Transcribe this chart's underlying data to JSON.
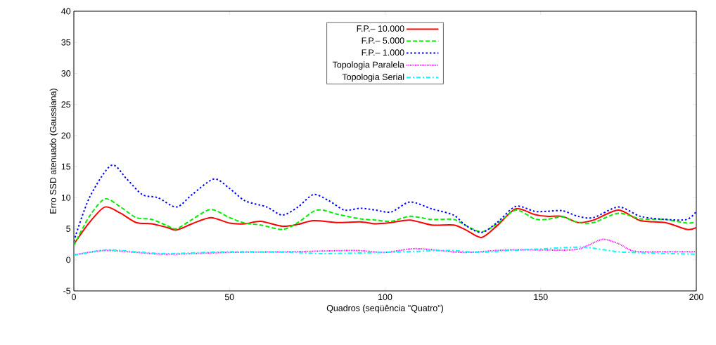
{
  "chart_data": {
    "type": "line",
    "xlabel": "Quadros (seqüência \"Quatro\")",
    "ylabel": "Erro SSD atenuado (Gaussiana)",
    "xlim": [
      0,
      200
    ],
    "xticks": [
      0,
      50,
      100,
      150,
      200
    ],
    "ylim": [
      -5,
      40
    ],
    "yticks": [
      -5,
      0,
      5,
      10,
      15,
      20,
      25,
      30,
      35,
      40
    ],
    "grid": false,
    "legend": "top",
    "marker": "none",
    "series": [
      {
        "name": "F.P.– 10.000",
        "color": "#ff0000",
        "line_style": "solid",
        "x": [
          0,
          5,
          10,
          15,
          20,
          25,
          30,
          33,
          38,
          44,
          50,
          55,
          60,
          67,
          72,
          77,
          85,
          92,
          97,
          102,
          108,
          115,
          122,
          126,
          131,
          136,
          142,
          148,
          152,
          157,
          162,
          167,
          175,
          182,
          190,
          197,
          200
        ],
        "values": [
          2.5,
          6,
          8.5,
          7.5,
          6.0,
          5.8,
          5.2,
          4.8,
          5.8,
          6.8,
          5.9,
          5.8,
          6.2,
          5.4,
          5.7,
          6.3,
          6.0,
          6.1,
          5.8,
          6.0,
          6.4,
          5.6,
          5.6,
          4.8,
          3.6,
          5.5,
          8.2,
          7.3,
          7.0,
          7.0,
          6.0,
          6.4,
          8.0,
          6.3,
          6.0,
          4.9,
          5.2
        ]
      },
      {
        "name": "F.P.– 5.000",
        "color": "#00ee00",
        "line_style": "dashed",
        "x": [
          0,
          5,
          10,
          15,
          20,
          25,
          30,
          33,
          38,
          44,
          50,
          55,
          60,
          67,
          72,
          77,
          80,
          85,
          92,
          97,
          102,
          108,
          115,
          122,
          126,
          131,
          136,
          142,
          148,
          152,
          157,
          162,
          167,
          175,
          182,
          190,
          197,
          200
        ],
        "values": [
          2.3,
          7,
          9.8,
          8.5,
          6.8,
          6.5,
          5.5,
          5.0,
          6.5,
          8.1,
          6.8,
          5.9,
          5.6,
          4.9,
          6.0,
          7.8,
          8.0,
          7.3,
          6.6,
          6.4,
          6.2,
          7.0,
          6.5,
          6.5,
          5.5,
          4.5,
          5.8,
          8.0,
          6.6,
          6.5,
          6.9,
          6.0,
          6.0,
          7.5,
          6.6,
          6.5,
          5.9,
          6.1
        ]
      },
      {
        "name": "F.P.– 1.000",
        "color": "#0000ff",
        "line_style": "dotted",
        "x": [
          0,
          5,
          12,
          17,
          22,
          27,
          33,
          38,
          45,
          50,
          55,
          62,
          67,
          72,
          77,
          82,
          87,
          92,
          97,
          102,
          108,
          115,
          122,
          126,
          131,
          136,
          142,
          148,
          152,
          157,
          162,
          167,
          175,
          182,
          190,
          197,
          200
        ],
        "values": [
          3.0,
          10,
          15.2,
          13,
          10.5,
          10,
          8.5,
          10.5,
          13.0,
          11.5,
          9.5,
          8.5,
          7.2,
          8.5,
          10.5,
          9.5,
          8.0,
          8.3,
          8.0,
          7.7,
          9.3,
          8.2,
          7.2,
          5.5,
          4.4,
          6.0,
          8.6,
          7.8,
          7.8,
          7.9,
          7.0,
          6.8,
          8.5,
          7.0,
          6.5,
          6.5,
          7.8
        ]
      },
      {
        "name": "Topologia Paralela",
        "color": "#ff00ff",
        "line_style": "densely dotted",
        "x": [
          0,
          10,
          20,
          30,
          50,
          70,
          90,
          100,
          110,
          125,
          140,
          160,
          165,
          170,
          175,
          180,
          190,
          200
        ],
        "values": [
          0.8,
          1.5,
          1.2,
          0.9,
          1.2,
          1.3,
          1.5,
          1.2,
          1.8,
          1.2,
          1.6,
          1.6,
          2.3,
          3.3,
          2.6,
          1.4,
          1.3,
          1.3
        ]
      },
      {
        "name": "Topologia Serial",
        "color": "#00ffff",
        "line_style": "dashdot",
        "x": [
          0,
          10,
          20,
          30,
          50,
          70,
          80,
          100,
          120,
          130,
          140,
          160,
          165,
          175,
          185,
          200
        ],
        "values": [
          0.7,
          1.6,
          1.3,
          1.0,
          1.3,
          1.2,
          1.0,
          1.2,
          1.5,
          1.2,
          1.5,
          2.0,
          2.0,
          1.3,
          1.1,
          0.9
        ]
      }
    ]
  }
}
